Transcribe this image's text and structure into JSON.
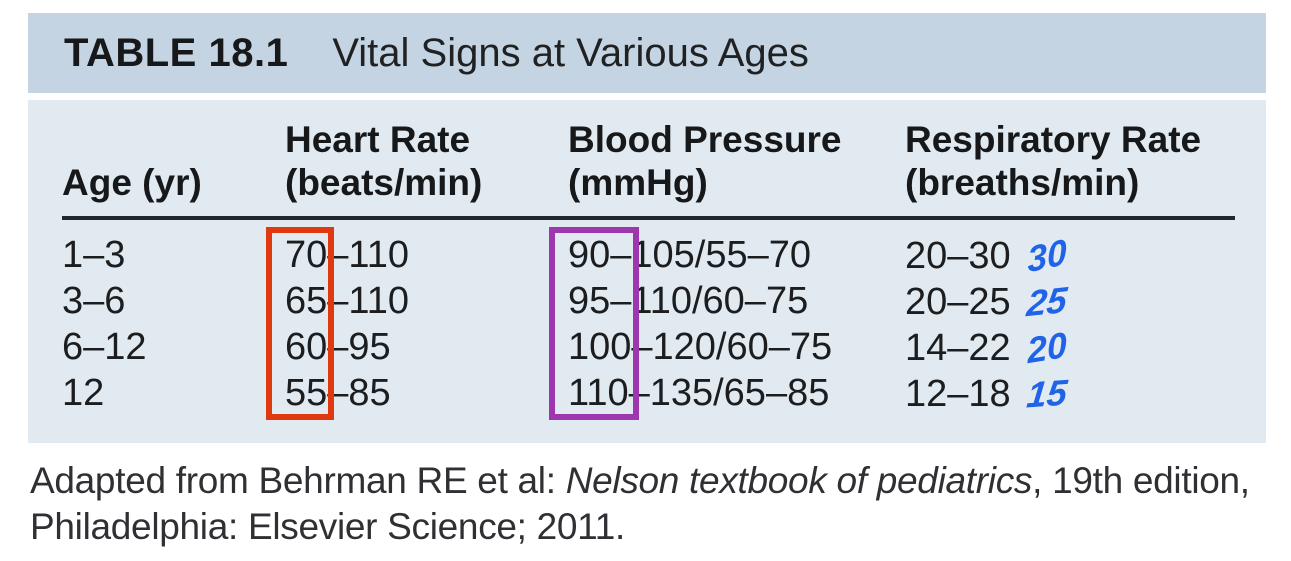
{
  "table": {
    "id": "TABLE 18.1",
    "title": "Vital Signs at Various Ages",
    "columns": [
      {
        "line1": "Age (yr)",
        "line2": ""
      },
      {
        "line1": "Heart Rate",
        "line2": "(beats/min)"
      },
      {
        "line1": "Blood Pressure",
        "line2": "(mmHg)"
      },
      {
        "line1": "Respiratory Rate",
        "line2": "(breaths/min)"
      }
    ],
    "rows": [
      {
        "age": "1–3",
        "heart_rate": "70–110",
        "blood_pressure": "90–105/55–70",
        "respiratory_rate": "20–30",
        "annotation": "30"
      },
      {
        "age": "3–6",
        "heart_rate": "65–110",
        "blood_pressure": "95–110/60–75",
        "respiratory_rate": "20–25",
        "annotation": "25"
      },
      {
        "age": "6–12",
        "heart_rate": "60–95",
        "blood_pressure": "100–120/60–75",
        "respiratory_rate": "14–22",
        "annotation": "20"
      },
      {
        "age": "12",
        "heart_rate": "55–85",
        "blood_pressure": "110–135/65–85",
        "respiratory_rate": "12–18",
        "annotation": "15"
      }
    ]
  },
  "colors": {
    "title_bar_bg": "#c5d4e2",
    "panel_bg": "#e1eaf0",
    "red_marker_box": "#e0390f",
    "purple_marker_box": "#9e36ae",
    "handwriting_ink": "#1f63e8"
  },
  "footnote": {
    "text_before_italic": "Adapted from Behrman RE et al: ",
    "italic_title": "Nelson textbook of pediatrics",
    "text_after_italic": ", 19th edition,",
    "line2": "Philadelphia: Elsevier Science; 2011."
  }
}
